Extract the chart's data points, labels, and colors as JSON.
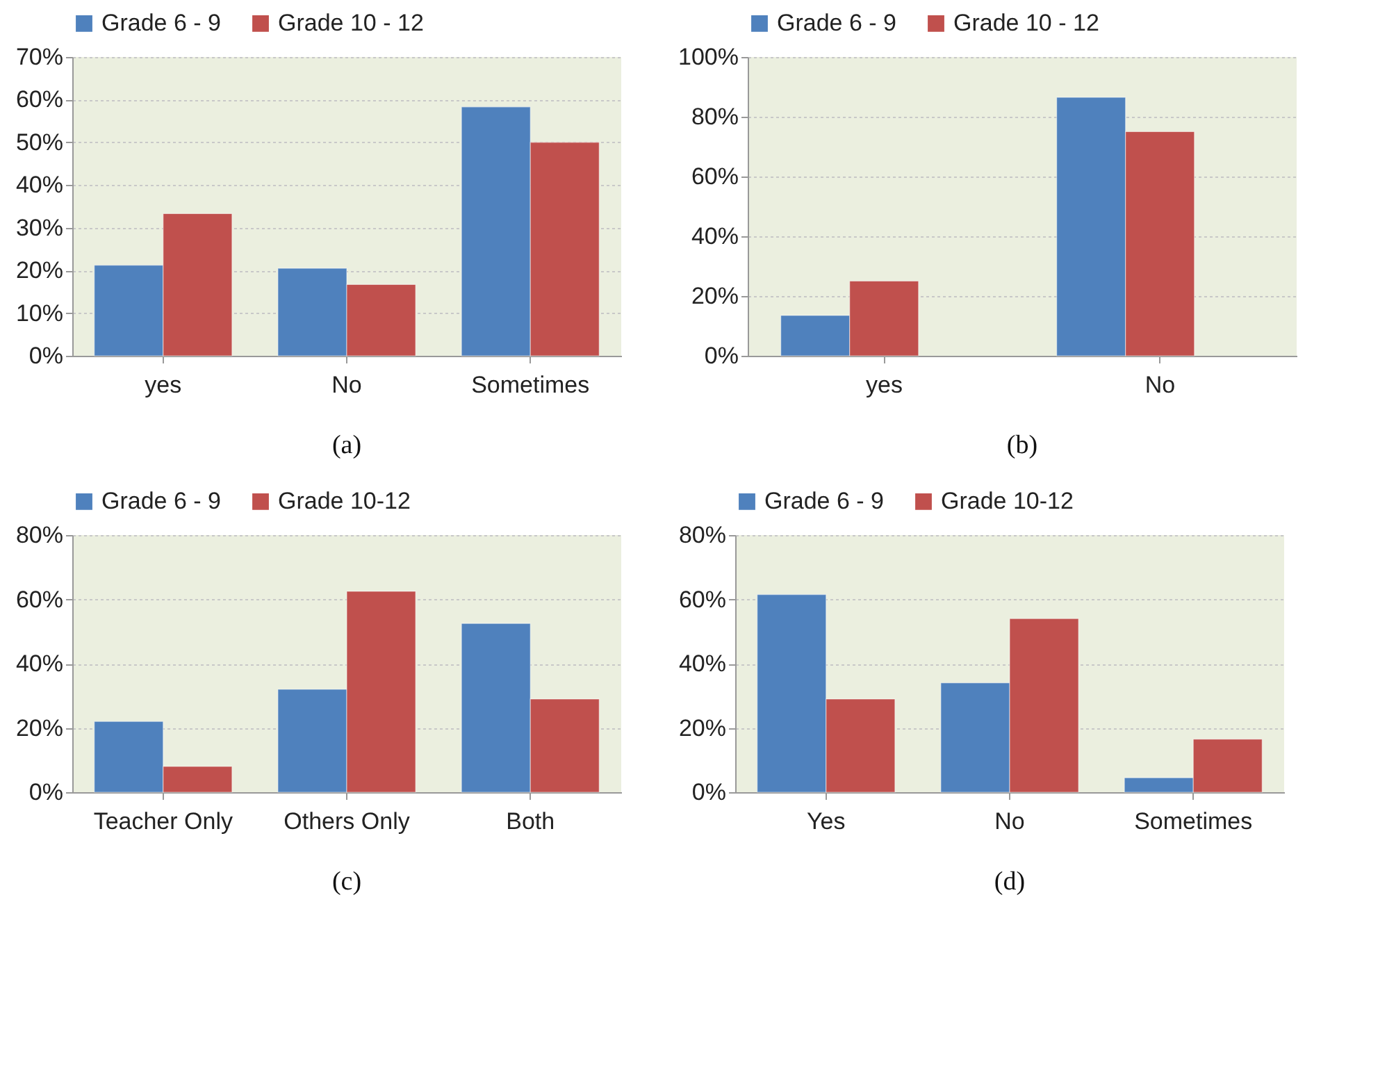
{
  "chart_data": [
    {
      "type": "bar",
      "categories": [
        "yes",
        "No",
        "Sometimes"
      ],
      "series": [
        {
          "name": "Grade 6 - 9",
          "color": "#4f81bd",
          "values": [
            21.2,
            20.5,
            58.3
          ]
        },
        {
          "name": "Grade 10 - 12",
          "color": "#c0504d",
          "values": [
            33.3,
            16.7,
            50
          ]
        }
      ],
      "ylim": [
        0,
        70
      ],
      "yticks": [
        {
          "value": 0,
          "label": "0%"
        },
        {
          "value": 10,
          "label": "10%"
        },
        {
          "value": 20,
          "label": "20%"
        },
        {
          "value": 30,
          "label": "30%"
        },
        {
          "value": 40,
          "label": "40%"
        },
        {
          "value": 50,
          "label": "50%"
        },
        {
          "value": 60,
          "label": "60%"
        },
        {
          "value": 70,
          "label": "70%"
        }
      ],
      "grid": "y",
      "legend": "top",
      "annotations": [
        "(a)"
      ]
    },
    {
      "type": "bar",
      "categories": [
        "yes",
        "No"
      ],
      "series": [
        {
          "name": "Grade 6 - 9",
          "color": "#4f81bd",
          "values": [
            13.5,
            86.5
          ]
        },
        {
          "name": "Grade 10 - 12",
          "color": "#c0504d",
          "values": [
            25,
            75
          ]
        }
      ],
      "ylim": [
        0,
        100
      ],
      "yticks": [
        {
          "value": 0,
          "label": "0%"
        },
        {
          "value": 20,
          "label": "20%"
        },
        {
          "value": 40,
          "label": "40%"
        },
        {
          "value": 60,
          "label": "60%"
        },
        {
          "value": 80,
          "label": "80%"
        },
        {
          "value": 100,
          "label": "100%"
        }
      ],
      "grid": "y",
      "legend": "top",
      "annotations": [
        "(b)"
      ]
    },
    {
      "type": "bar",
      "categories": [
        "Teacher Only",
        "Others Only",
        "Both"
      ],
      "series": [
        {
          "name": "Grade 6 - 9",
          "color": "#4f81bd",
          "values": [
            22,
            32,
            52.5
          ]
        },
        {
          "name": "Grade 10-12",
          "color": "#c0504d",
          "values": [
            8,
            62.5,
            29
          ]
        }
      ],
      "ylim": [
        0,
        80
      ],
      "yticks": [
        {
          "value": 0,
          "label": "0%"
        },
        {
          "value": 20,
          "label": "20%"
        },
        {
          "value": 40,
          "label": "40%"
        },
        {
          "value": 60,
          "label": "60%"
        },
        {
          "value": 80,
          "label": "80%"
        }
      ],
      "grid": "y",
      "legend": "top",
      "annotations": [
        "(c)"
      ]
    },
    {
      "type": "bar",
      "categories": [
        "Yes",
        "No",
        "Sometimes"
      ],
      "series": [
        {
          "name": "Grade 6 - 9",
          "color": "#4f81bd",
          "values": [
            61.5,
            34,
            4.5
          ]
        },
        {
          "name": "Grade 10-12",
          "color": "#c0504d",
          "values": [
            29,
            54,
            16.5
          ]
        }
      ],
      "ylim": [
        0,
        80
      ],
      "yticks": [
        {
          "value": 0,
          "label": "0%"
        },
        {
          "value": 20,
          "label": "20%"
        },
        {
          "value": 40,
          "label": "40%"
        },
        {
          "value": 60,
          "label": "60%"
        },
        {
          "value": 80,
          "label": "80%"
        }
      ],
      "grid": "y",
      "legend": "top",
      "annotations": [
        "(d)"
      ]
    }
  ]
}
